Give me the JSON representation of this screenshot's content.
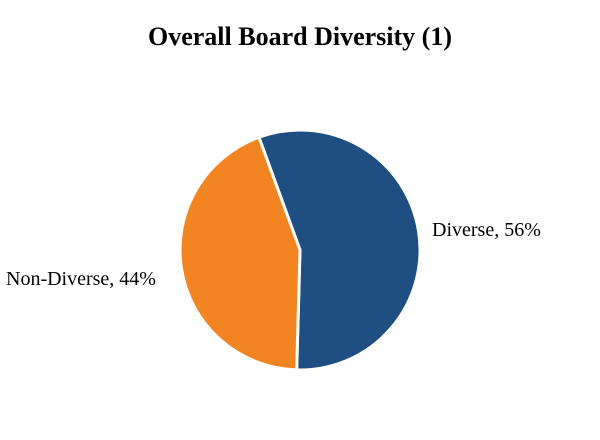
{
  "chart_data": {
    "type": "pie",
    "title": "Overall Board Diversity (1)",
    "slices": [
      {
        "name": "Diverse",
        "value": 56,
        "label": "Diverse, 56%",
        "color": "#1f4e82"
      },
      {
        "name": "Non-Diverse",
        "value": 44,
        "label": "Non-Diverse, 44%",
        "color": "#f28522"
      }
    ],
    "start_angle_deg": -20,
    "direction": "clockwise",
    "legend": "none"
  }
}
